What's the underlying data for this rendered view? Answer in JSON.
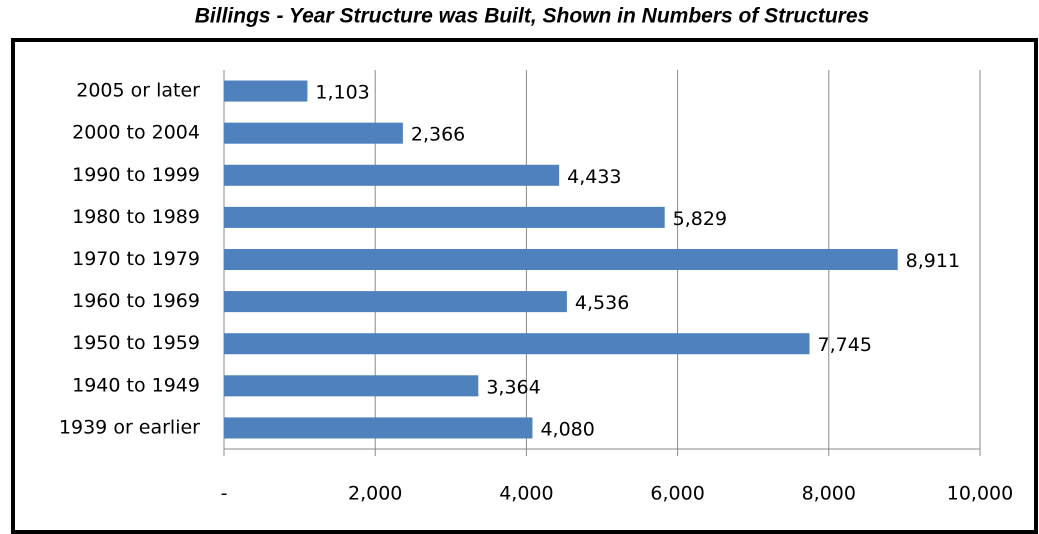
{
  "chart_data": {
    "type": "bar",
    "orientation": "horizontal",
    "title": "Billings - Year Structure was Built, Shown in Numbers of Structures",
    "categories": [
      "2005 or later",
      "2000 to 2004",
      "1990 to 1999",
      "1980 to 1989",
      "1970 to 1979",
      "1960 to 1969",
      "1950 to 1959",
      "1940 to 1949",
      "1939 or earlier"
    ],
    "values": [
      1103,
      2366,
      4433,
      5829,
      8911,
      4536,
      7745,
      3364,
      4080
    ],
    "value_labels": [
      "1,103",
      "2,366",
      "4,433",
      "5,829",
      "8,911",
      "4,536",
      "7,745",
      "3,364",
      "4,080"
    ],
    "color": "#4f81bd",
    "xlim": [
      0,
      10000
    ],
    "xticks": [
      {
        "value": 0,
        "label": "-"
      },
      {
        "value": 2000,
        "label": "2,000"
      },
      {
        "value": 4000,
        "label": "4,000"
      },
      {
        "value": 6000,
        "label": "6,000"
      },
      {
        "value": 8000,
        "label": "8,000"
      },
      {
        "value": 10000,
        "label": "10,000"
      }
    ],
    "grid": true
  }
}
